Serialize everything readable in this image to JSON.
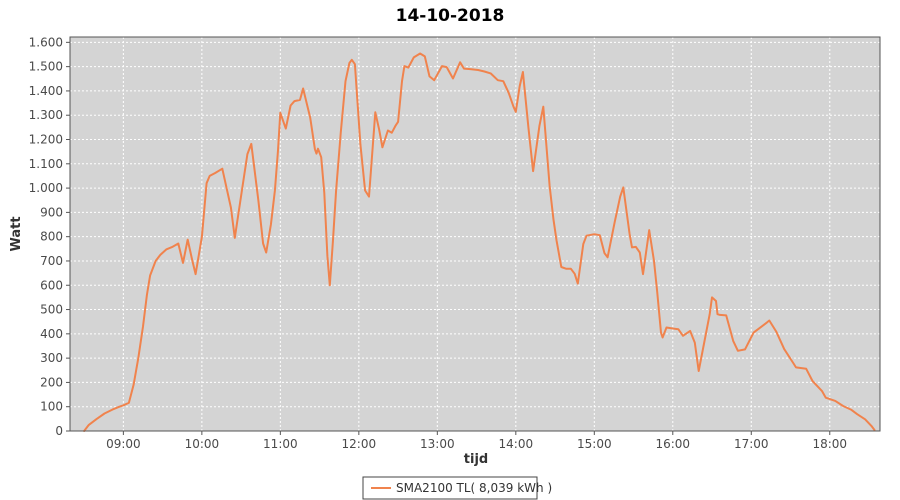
{
  "title": "14-10-2018",
  "colors": {
    "series_orange": "#f0834d",
    "plot_background": "#d4d4d4",
    "gridline": "#ffffff",
    "plot_border": "#555555",
    "tick_color": "#555555",
    "tick_label": "#4a4a4a",
    "legend_border": "#444444",
    "legend_background": "#ffffff",
    "page_background": "#ffffff"
  },
  "chart_data": {
    "type": "line",
    "title": "14-10-2018",
    "xlabel": "tijd",
    "ylabel": "Watt",
    "grid": "white dashed on gray plot",
    "legend_position": "bottom-center",
    "x_domain_hours": [
      8.32,
      18.64
    ],
    "ylim": [
      0,
      1622
    ],
    "x_ticks": [
      {
        "h": 9,
        "label": "09:00"
      },
      {
        "h": 10,
        "label": "10:00"
      },
      {
        "h": 11,
        "label": "11:00"
      },
      {
        "h": 12,
        "label": "12:00"
      },
      {
        "h": 13,
        "label": "13:00"
      },
      {
        "h": 14,
        "label": "14:00"
      },
      {
        "h": 15,
        "label": "15:00"
      },
      {
        "h": 16,
        "label": "16:00"
      },
      {
        "h": 17,
        "label": "17:00"
      },
      {
        "h": 18,
        "label": "18:00"
      }
    ],
    "y_ticks": [
      {
        "v": 0,
        "label": "0"
      },
      {
        "v": 100,
        "label": "100"
      },
      {
        "v": 200,
        "label": "200"
      },
      {
        "v": 300,
        "label": "300"
      },
      {
        "v": 400,
        "label": "400"
      },
      {
        "v": 500,
        "label": "500"
      },
      {
        "v": 600,
        "label": "600"
      },
      {
        "v": 700,
        "label": "700"
      },
      {
        "v": 800,
        "label": "800"
      },
      {
        "v": 900,
        "label": "900"
      },
      {
        "v": 1000,
        "label": "1.000"
      },
      {
        "v": 1100,
        "label": "1.100"
      },
      {
        "v": 1200,
        "label": "1.200"
      },
      {
        "v": 1300,
        "label": "1.300"
      },
      {
        "v": 1400,
        "label": "1.400"
      },
      {
        "v": 1500,
        "label": "1.500"
      },
      {
        "v": 1600,
        "label": "1.600"
      }
    ],
    "legend": {
      "entries": [
        {
          "label": "SMA2100 TL( 8,039 kWh )",
          "color": "#f0834d"
        }
      ]
    },
    "series": [
      {
        "name": "SMA2100 TL( 8,039 kWh )",
        "color": "#f0834d",
        "stroke_width": 2,
        "points": [
          [
            8.5,
            0
          ],
          [
            8.56,
            25
          ],
          [
            8.66,
            50
          ],
          [
            8.76,
            72
          ],
          [
            8.86,
            88
          ],
          [
            8.95,
            100
          ],
          [
            9.0,
            106
          ],
          [
            9.07,
            116
          ],
          [
            9.13,
            190
          ],
          [
            9.19,
            300
          ],
          [
            9.25,
            430
          ],
          [
            9.3,
            560
          ],
          [
            9.34,
            640
          ],
          [
            9.41,
            700
          ],
          [
            9.47,
            725
          ],
          [
            9.55,
            748
          ],
          [
            9.62,
            757
          ],
          [
            9.7,
            772
          ],
          [
            9.76,
            692
          ],
          [
            9.82,
            788
          ],
          [
            9.88,
            700
          ],
          [
            9.92,
            646
          ],
          [
            10.0,
            800
          ],
          [
            10.06,
            1020
          ],
          [
            10.1,
            1050
          ],
          [
            10.17,
            1062
          ],
          [
            10.26,
            1080
          ],
          [
            10.37,
            920
          ],
          [
            10.42,
            795
          ],
          [
            10.51,
            990
          ],
          [
            10.58,
            1140
          ],
          [
            10.63,
            1182
          ],
          [
            10.72,
            948
          ],
          [
            10.78,
            772
          ],
          [
            10.82,
            735
          ],
          [
            10.88,
            850
          ],
          [
            10.93,
            990
          ],
          [
            10.97,
            1155
          ],
          [
            11.0,
            1310
          ],
          [
            11.07,
            1245
          ],
          [
            11.13,
            1340
          ],
          [
            11.18,
            1358
          ],
          [
            11.25,
            1363
          ],
          [
            11.29,
            1410
          ],
          [
            11.38,
            1290
          ],
          [
            11.44,
            1160
          ],
          [
            11.46,
            1142
          ],
          [
            11.48,
            1162
          ],
          [
            11.52,
            1127
          ],
          [
            11.56,
            980
          ],
          [
            11.6,
            720
          ],
          [
            11.63,
            600
          ],
          [
            11.67,
            780
          ],
          [
            11.71,
            990
          ],
          [
            11.77,
            1230
          ],
          [
            11.83,
            1440
          ],
          [
            11.88,
            1515
          ],
          [
            11.91,
            1528
          ],
          [
            11.95,
            1510
          ],
          [
            12.02,
            1180
          ],
          [
            12.08,
            990
          ],
          [
            12.13,
            965
          ],
          [
            12.21,
            1312
          ],
          [
            12.26,
            1240
          ],
          [
            12.3,
            1168
          ],
          [
            12.37,
            1237
          ],
          [
            12.42,
            1228
          ],
          [
            12.47,
            1258
          ],
          [
            12.5,
            1273
          ],
          [
            12.55,
            1440
          ],
          [
            12.58,
            1502
          ],
          [
            12.63,
            1496
          ],
          [
            12.7,
            1538
          ],
          [
            12.78,
            1554
          ],
          [
            12.84,
            1542
          ],
          [
            12.9,
            1460
          ],
          [
            12.96,
            1444
          ],
          [
            13.06,
            1502
          ],
          [
            13.12,
            1498
          ],
          [
            13.2,
            1451
          ],
          [
            13.29,
            1518
          ],
          [
            13.34,
            1492
          ],
          [
            13.42,
            1490
          ],
          [
            13.52,
            1486
          ],
          [
            13.6,
            1480
          ],
          [
            13.68,
            1472
          ],
          [
            13.77,
            1444
          ],
          [
            13.84,
            1440
          ],
          [
            13.91,
            1392
          ],
          [
            13.97,
            1335
          ],
          [
            14.0,
            1314
          ],
          [
            14.05,
            1420
          ],
          [
            14.09,
            1478
          ],
          [
            14.16,
            1250
          ],
          [
            14.22,
            1070
          ],
          [
            14.3,
            1255
          ],
          [
            14.35,
            1335
          ],
          [
            14.43,
            1010
          ],
          [
            14.48,
            870
          ],
          [
            14.52,
            783
          ],
          [
            14.58,
            675
          ],
          [
            14.64,
            668
          ],
          [
            14.7,
            668
          ],
          [
            14.75,
            647
          ],
          [
            14.79,
            607
          ],
          [
            14.86,
            770
          ],
          [
            14.9,
            804
          ],
          [
            15.0,
            810
          ],
          [
            15.07,
            806
          ],
          [
            15.13,
            732
          ],
          [
            15.17,
            715
          ],
          [
            15.26,
            860
          ],
          [
            15.33,
            965
          ],
          [
            15.37,
            1003
          ],
          [
            15.45,
            811
          ],
          [
            15.48,
            756
          ],
          [
            15.53,
            758
          ],
          [
            15.58,
            735
          ],
          [
            15.62,
            646
          ],
          [
            15.7,
            827
          ],
          [
            15.76,
            700
          ],
          [
            15.8,
            577
          ],
          [
            15.85,
            405
          ],
          [
            15.87,
            385
          ],
          [
            15.92,
            426
          ],
          [
            16.0,
            422
          ],
          [
            16.07,
            419
          ],
          [
            16.13,
            392
          ],
          [
            16.22,
            412
          ],
          [
            16.28,
            364
          ],
          [
            16.33,
            247
          ],
          [
            16.47,
            481
          ],
          [
            16.5,
            550
          ],
          [
            16.55,
            535
          ],
          [
            16.57,
            481
          ],
          [
            16.6,
            478
          ],
          [
            16.68,
            476
          ],
          [
            16.77,
            371
          ],
          [
            16.83,
            330
          ],
          [
            16.92,
            336
          ],
          [
            17.03,
            405
          ],
          [
            17.2,
            447
          ],
          [
            17.23,
            455
          ],
          [
            17.32,
            408
          ],
          [
            17.42,
            337
          ],
          [
            17.53,
            282
          ],
          [
            17.57,
            262
          ],
          [
            17.7,
            256
          ],
          [
            17.78,
            206
          ],
          [
            17.9,
            165
          ],
          [
            17.95,
            137
          ],
          [
            18.07,
            124
          ],
          [
            18.17,
            103
          ],
          [
            18.27,
            88
          ],
          [
            18.35,
            69
          ],
          [
            18.45,
            48
          ],
          [
            18.53,
            21
          ],
          [
            18.57,
            4
          ]
        ]
      }
    ]
  }
}
